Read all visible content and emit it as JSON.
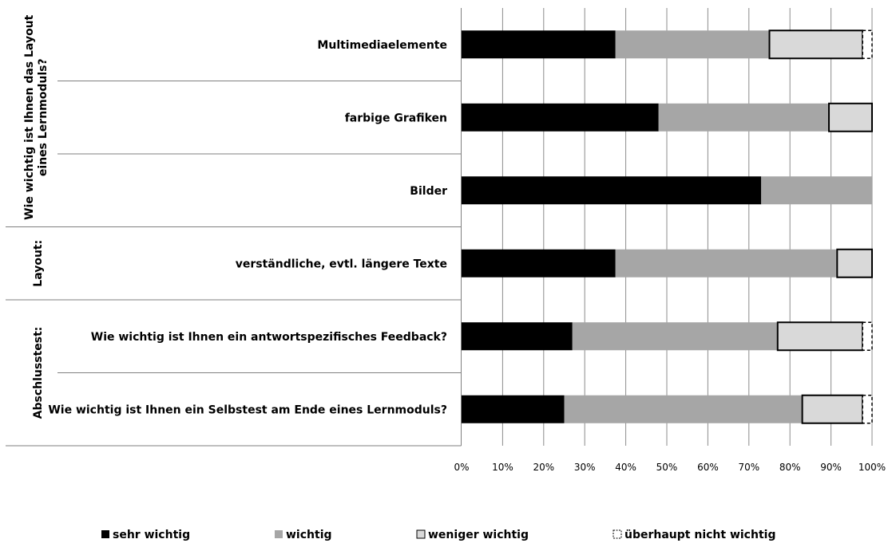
{
  "chart_data": {
    "type": "bar",
    "orientation": "horizontal",
    "stacked": true,
    "groups": [
      {
        "label": "Wie wichtig ist Ihnen das Layout eines Lernmoduls?",
        "categories": [
          "Multimediaelemente",
          "farbige Grafiken",
          "Bilder"
        ]
      },
      {
        "label": "Layout:",
        "categories": [
          "verständliche, evtl. längere Texte"
        ]
      },
      {
        "label": "Abschlusstest:",
        "categories": [
          "Wie wichtig ist Ihnen ein antwortspezifisches Feedback?",
          "Wie wichtig ist Ihnen ein Selbstest am Ende eines Lernmoduls?"
        ]
      }
    ],
    "categories": [
      "Multimediaelemente",
      "farbige Grafiken",
      "Bilder",
      "verständliche, evtl. längere Texte",
      "Wie wichtig ist Ihnen ein antwortspezifisches Feedback?",
      "Wie wichtig ist Ihnen ein Selbstest am Ende eines Lernmoduls?"
    ],
    "series": [
      {
        "name": "sehr wichtig",
        "color": "#000000",
        "values": [
          37.5,
          48,
          73,
          37.5,
          27,
          25
        ]
      },
      {
        "name": "wichtig",
        "color": "#a6a6a6",
        "values": [
          37.5,
          41.5,
          27,
          54,
          50,
          58
        ]
      },
      {
        "name": "weniger wichtig",
        "color": "#d9d9d9",
        "values": [
          22.7,
          10.5,
          0,
          8.5,
          20.7,
          14.7
        ]
      },
      {
        "name": "überhaupt nicht wichtig",
        "color": "#ffffff",
        "values": [
          2.3,
          0,
          0,
          0,
          2.3,
          2.3
        ]
      }
    ],
    "xlim": [
      0,
      100
    ],
    "x_ticks": [
      "0%",
      "10%",
      "20%",
      "30%",
      "40%",
      "50%",
      "60%",
      "70%",
      "80%",
      "90%",
      "100%"
    ],
    "grid": true,
    "legend_position": "bottom"
  }
}
